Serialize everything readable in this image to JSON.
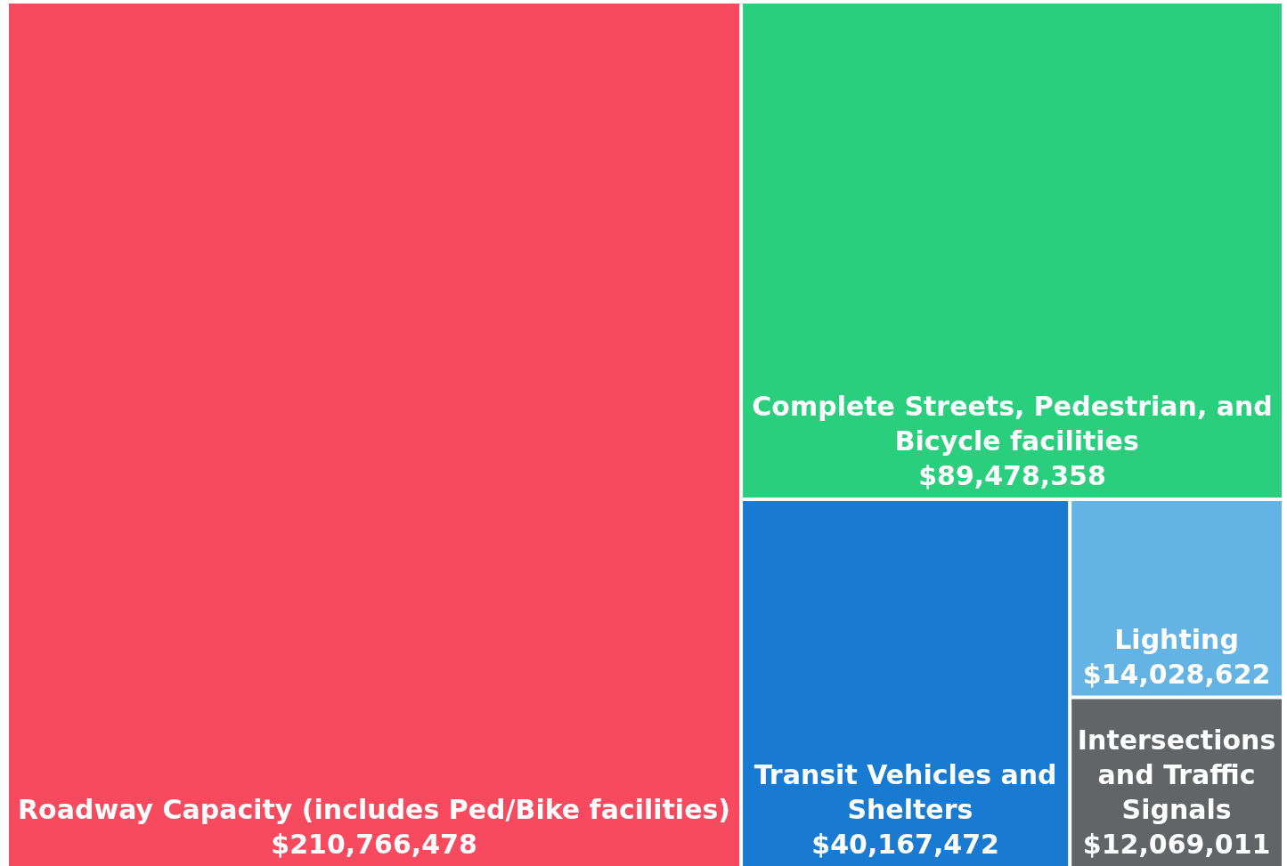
{
  "chart_data": {
    "type": "other",
    "categories": [
      "Roadway Capacity (includes Ped/Bike facilities)",
      "Complete Streets, Pedestrian, and Bicycle facilities",
      "Transit Vehicles and Shelters",
      "Lighting",
      "Intersections and Traffic Signals"
    ],
    "values": [
      210766478,
      89478358,
      40167472,
      14028622,
      12069011
    ],
    "value_labels": [
      "$210,766,478",
      "$89,478,358",
      "$40,167,472",
      "$14,028,622",
      "$12,069,011"
    ],
    "colors": [
      "#f84a5e",
      "#2acf7e",
      "#187bd1",
      "#63b3e5",
      "#636466"
    ]
  }
}
